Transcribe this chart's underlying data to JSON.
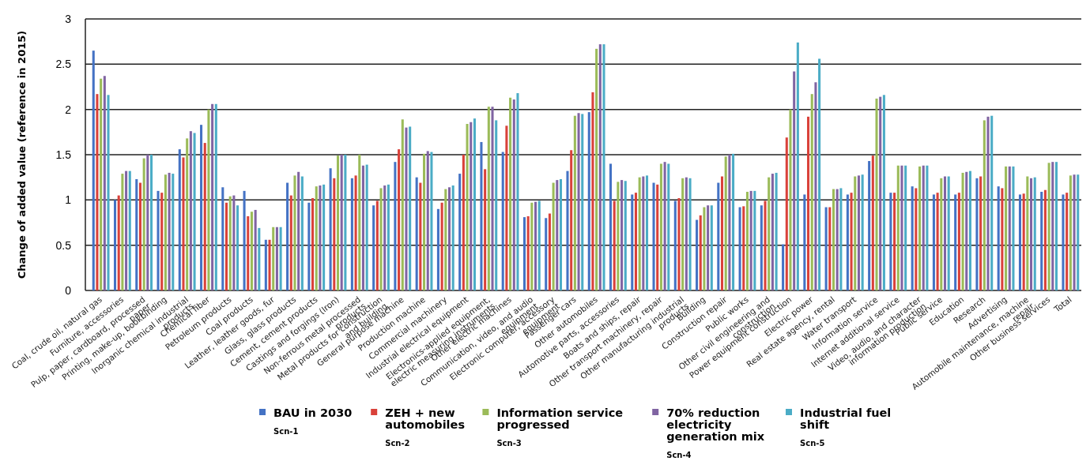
{
  "chart_data": {
    "type": "bar",
    "ylabel": "Change of added value (reference in 2015)",
    "categories": [
      "Coal, crude oil, natural gas",
      "Furniture, accessories",
      "Pulp, paper, cardboard, processed paper",
      "Printing, make-up, bookbinding",
      "Inorganic chemical industrial products",
      "Chemical fiber",
      "Petroleum products",
      "Coal products",
      "Leather, leather goods, fur",
      "Glass, glass products",
      "Cement, cement products",
      "Castings and forgings (Iron)",
      "Non-ferrous metal processed products",
      "Metal products for construction and building",
      "General purpose machine",
      "Production machine",
      "Commercial machinery",
      "Industrial electrical equipment",
      "Electronics-applied equipment, electric measuring instruments",
      "Other electric machines",
      "Communication, video, and audio equipment",
      "Electronic computer, accessory equipment",
      "Passenger cars",
      "Other automobiles",
      "Automotive parts, accessories",
      "Boats and ships, repair",
      "Other transport machinery, repair",
      "Other manufacturing industrial products",
      "Building",
      "Construction repair",
      "Public works",
      "Other civil engineering and construction",
      "Power equipment construction",
      "Electric power",
      "Real estate agency, rental",
      "Water transport",
      "Information service",
      "Internet additional service",
      "Video, audio, and character information production",
      "Public service",
      "Education",
      "Research",
      "Advertising",
      "Automobile maintenance, machine repair",
      "Other business services",
      "Total"
    ],
    "series": [
      {
        "name": "BAU in 2030",
        "color": "#4472c4",
        "values": [
          2.65,
          1.0,
          1.23,
          1.1,
          1.56,
          1.83,
          1.14,
          1.1,
          0.56,
          1.19,
          0.97,
          1.35,
          1.24,
          0.94,
          1.42,
          1.25,
          0.9,
          1.29,
          1.64,
          1.53,
          0.81,
          0.8,
          1.32,
          1.97,
          1.4,
          1.06,
          1.19,
          0.99,
          0.78,
          1.19,
          0.92,
          0.94,
          0.51,
          1.06,
          0.92,
          1.06,
          1.43,
          1.08,
          1.15,
          1.06,
          1.06,
          1.24,
          1.15,
          1.06,
          1.09,
          1.06
        ]
      },
      {
        "name": "ZEH + new automobiles",
        "color": "#d9413a",
        "values": [
          2.17,
          1.05,
          1.19,
          1.08,
          1.47,
          1.63,
          0.97,
          0.82,
          0.56,
          1.05,
          1.02,
          1.24,
          1.27,
          0.99,
          1.56,
          1.19,
          0.97,
          1.5,
          1.34,
          1.82,
          0.82,
          0.85,
          1.55,
          2.19,
          0.99,
          1.08,
          1.17,
          1.02,
          0.83,
          1.26,
          0.93,
          0.99,
          1.69,
          1.92,
          0.92,
          1.08,
          1.49,
          1.08,
          1.13,
          1.08,
          1.08,
          1.26,
          1.13,
          1.07,
          1.11,
          1.08
        ]
      },
      {
        "name": "Information service progressed",
        "color": "#9bbb59",
        "values": [
          2.34,
          1.29,
          1.46,
          1.28,
          1.68,
          2.0,
          1.04,
          0.87,
          0.7,
          1.27,
          1.15,
          1.49,
          1.5,
          1.13,
          1.89,
          1.51,
          1.12,
          1.84,
          2.03,
          2.13,
          0.97,
          1.19,
          1.93,
          2.67,
          1.2,
          1.25,
          1.4,
          1.24,
          0.92,
          1.48,
          1.09,
          1.25,
          2.0,
          2.17,
          1.12,
          1.26,
          2.12,
          1.38,
          1.37,
          1.24,
          1.3,
          1.88,
          1.37,
          1.26,
          1.41,
          1.27
        ]
      },
      {
        "name": "70% reduction electricity generation mix",
        "color": "#8064a2",
        "values": [
          2.37,
          1.32,
          1.5,
          1.3,
          1.76,
          2.06,
          1.05,
          0.89,
          0.7,
          1.31,
          1.16,
          1.5,
          1.38,
          1.16,
          1.8,
          1.54,
          1.14,
          1.86,
          2.03,
          2.11,
          0.98,
          1.22,
          1.96,
          2.72,
          1.22,
          1.26,
          1.42,
          1.25,
          0.94,
          1.5,
          1.1,
          1.29,
          2.42,
          2.3,
          1.12,
          1.27,
          2.14,
          1.38,
          1.38,
          1.26,
          1.31,
          1.92,
          1.37,
          1.24,
          1.42,
          1.28
        ]
      },
      {
        "name": "Industrial fuel shift",
        "color": "#4bacc6",
        "values": [
          2.16,
          1.32,
          1.5,
          1.29,
          1.74,
          2.06,
          0.94,
          0.69,
          0.7,
          1.26,
          1.17,
          1.5,
          1.39,
          1.17,
          1.81,
          1.53,
          1.16,
          1.9,
          1.88,
          2.18,
          0.99,
          1.23,
          1.95,
          2.72,
          1.21,
          1.27,
          1.4,
          1.24,
          0.94,
          1.51,
          1.1,
          1.3,
          2.74,
          2.56,
          1.13,
          1.28,
          2.16,
          1.38,
          1.38,
          1.26,
          1.32,
          1.93,
          1.37,
          1.25,
          1.42,
          1.28
        ]
      }
    ],
    "ylim": [
      0,
      3
    ],
    "yticks": [
      0,
      0.5,
      1,
      1.5,
      2,
      2.5,
      3
    ],
    "grid": "y",
    "legend": "bottom",
    "annotations": [
      "Scn-1",
      "Scn-2",
      "Scn-3",
      "Scn-4",
      "Scn-5"
    ]
  }
}
